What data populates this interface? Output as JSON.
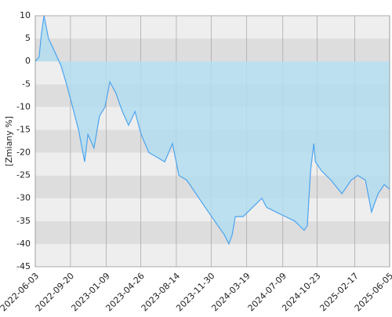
{
  "chart_data": {
    "type": "area",
    "y_label": "[Zmiany %]",
    "x": [
      "2022-06-03",
      "2022-06-15",
      "2022-06-22",
      "2022-06-30",
      "2022-07-14",
      "2022-08-03",
      "2022-08-22",
      "2022-09-08",
      "2022-09-23",
      "2022-10-15",
      "2022-11-03",
      "2022-11-13",
      "2022-12-02",
      "2022-12-19",
      "2023-01-05",
      "2023-01-20",
      "2023-02-08",
      "2023-02-28",
      "2023-03-19",
      "2023-04-08",
      "2023-04-27",
      "2023-05-21",
      "2023-06-15",
      "2023-07-09",
      "2023-08-02",
      "2023-08-22",
      "2023-09-15",
      "2023-10-14",
      "2023-11-12",
      "2023-12-11",
      "2024-01-10",
      "2024-01-24",
      "2024-02-03",
      "2024-02-13",
      "2024-03-08",
      "2024-04-06",
      "2024-05-05",
      "2024-05-20",
      "2024-06-18",
      "2024-07-17",
      "2024-08-15",
      "2024-09-13",
      "2024-09-23",
      "2024-10-03",
      "2024-10-13",
      "2024-10-18",
      "2024-11-06",
      "2024-12-05",
      "2025-01-08",
      "2025-02-06",
      "2025-02-26",
      "2025-03-22",
      "2025-04-10",
      "2025-04-30",
      "2025-05-19",
      "2025-06-05"
    ],
    "values": [
      0,
      1,
      6,
      10,
      5,
      2,
      -1,
      -5,
      -9,
      -15,
      -22,
      -16,
      -19,
      -12,
      -10,
      -4.5,
      -7,
      -11,
      -14,
      -11,
      -16,
      -20,
      -21,
      -22,
      -18,
      -25,
      -26,
      -29,
      -32,
      -35,
      -38,
      -40,
      -38,
      -34,
      -34,
      -32,
      -30,
      -32,
      -33,
      -34,
      -35,
      -37,
      -36,
      -24,
      -18,
      -22,
      -24,
      -26,
      -29,
      -26,
      -25,
      -26,
      -33,
      -29,
      -27,
      -28
    ],
    "color": "#4da3f0",
    "fill": "#b3ddef",
    "xlim": [
      "2022-06-03",
      "2025-06-05"
    ],
    "xticks": [
      "2022-06-03",
      "2022-09-20",
      "2023-01-09",
      "2023-04-26",
      "2023-08-14",
      "2023-11-30",
      "2024-03-19",
      "2024-07-09",
      "2024-10-23",
      "2025-02-17",
      "2025-06-05"
    ],
    "ylim": [
      -45,
      10
    ],
    "yticks": [
      -45,
      -40,
      -35,
      -30,
      -25,
      -20,
      -15,
      -10,
      -5,
      0,
      5,
      10
    ],
    "grid": true
  }
}
